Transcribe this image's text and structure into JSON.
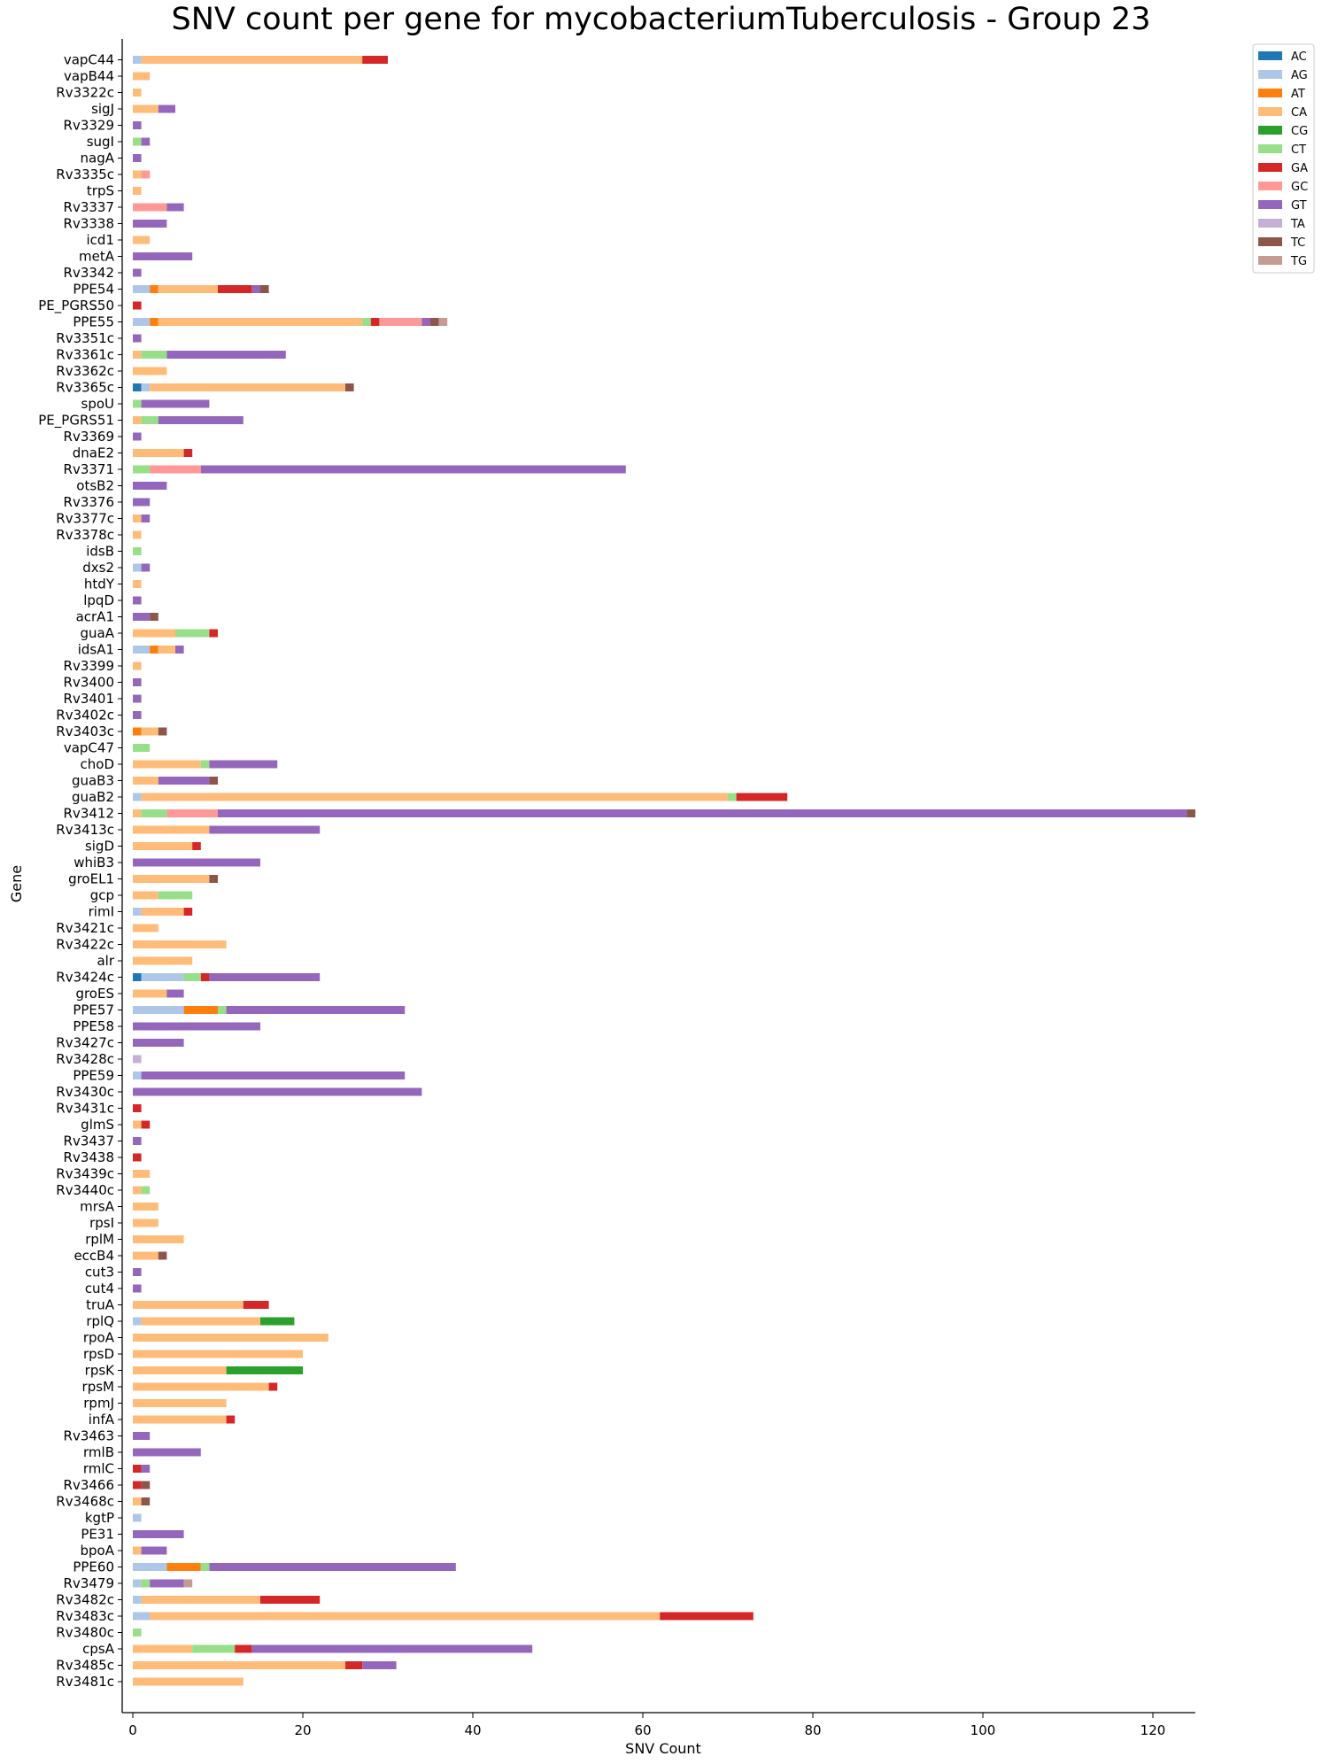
{
  "chart_data": {
    "type": "bar",
    "orientation": "horizontal",
    "stacked": true,
    "title": "SNV count per gene for mycobacteriumTuberculosis - Group 23",
    "xlabel": "SNV Count",
    "ylabel": "Gene",
    "xlim": [
      0,
      125
    ],
    "xticks": [
      0,
      20,
      40,
      60,
      80,
      100,
      120
    ],
    "grid": false,
    "legend_position": "top-right",
    "series": [
      {
        "name": "AC",
        "color": "#1f77b4"
      },
      {
        "name": "AG",
        "color": "#aec7e8"
      },
      {
        "name": "AT",
        "color": "#ff7f0e"
      },
      {
        "name": "CA",
        "color": "#ffbb78"
      },
      {
        "name": "CG",
        "color": "#2ca02c"
      },
      {
        "name": "CT",
        "color": "#98df8a"
      },
      {
        "name": "GA",
        "color": "#d62728"
      },
      {
        "name": "GC",
        "color": "#ff9896"
      },
      {
        "name": "GT",
        "color": "#9467bd"
      },
      {
        "name": "TA",
        "color": "#c5b0d5"
      },
      {
        "name": "TC",
        "color": "#8c564b"
      },
      {
        "name": "TG",
        "color": "#c49c94"
      }
    ],
    "genes": [
      {
        "name": "vapC44",
        "counts": {
          "AG": 1,
          "CA": 26,
          "GA": 3
        }
      },
      {
        "name": "vapB44",
        "counts": {
          "CA": 2
        }
      },
      {
        "name": "Rv3322c",
        "counts": {
          "CA": 1
        }
      },
      {
        "name": "sigJ",
        "counts": {
          "CA": 3,
          "GT": 2
        }
      },
      {
        "name": "Rv3329",
        "counts": {
          "GT": 1
        }
      },
      {
        "name": "sugI",
        "counts": {
          "CT": 1,
          "GT": 1
        }
      },
      {
        "name": "nagA",
        "counts": {
          "GT": 1
        }
      },
      {
        "name": "Rv3335c",
        "counts": {
          "CA": 1,
          "GC": 1
        }
      },
      {
        "name": "trpS",
        "counts": {
          "CA": 1
        }
      },
      {
        "name": "Rv3337",
        "counts": {
          "GC": 4,
          "GT": 2
        }
      },
      {
        "name": "Rv3338",
        "counts": {
          "GT": 4
        }
      },
      {
        "name": "icd1",
        "counts": {
          "CA": 2
        }
      },
      {
        "name": "metA",
        "counts": {
          "GT": 7
        }
      },
      {
        "name": "Rv3342",
        "counts": {
          "GT": 1
        }
      },
      {
        "name": "PPE54",
        "counts": {
          "AG": 2,
          "AT": 1,
          "CA": 7,
          "GA": 4,
          "GT": 1,
          "TC": 1
        }
      },
      {
        "name": "PE_PGRS50",
        "counts": {
          "GA": 1
        }
      },
      {
        "name": "PPE55",
        "counts": {
          "AG": 2,
          "AT": 1,
          "CA": 24,
          "CT": 1,
          "GA": 1,
          "GC": 5,
          "GT": 1,
          "TC": 1,
          "TG": 1
        }
      },
      {
        "name": "Rv3351c",
        "counts": {
          "GT": 1
        }
      },
      {
        "name": "Rv3361c",
        "counts": {
          "CA": 1,
          "CT": 3,
          "GT": 14
        }
      },
      {
        "name": "Rv3362c",
        "counts": {
          "CA": 4
        }
      },
      {
        "name": "Rv3365c",
        "counts": {
          "AC": 1,
          "AG": 1,
          "CA": 23,
          "TC": 1
        }
      },
      {
        "name": "spoU",
        "counts": {
          "CT": 1,
          "GT": 8
        }
      },
      {
        "name": "PE_PGRS51",
        "counts": {
          "CA": 1,
          "CT": 2,
          "GT": 10
        }
      },
      {
        "name": "Rv3369",
        "counts": {
          "GT": 1
        }
      },
      {
        "name": "dnaE2",
        "counts": {
          "CA": 6,
          "GA": 1
        }
      },
      {
        "name": "Rv3371",
        "counts": {
          "CT": 2,
          "GC": 6,
          "GT": 50
        }
      },
      {
        "name": "otsB2",
        "counts": {
          "GT": 4
        }
      },
      {
        "name": "Rv3376",
        "counts": {
          "GT": 2
        }
      },
      {
        "name": "Rv3377c",
        "counts": {
          "CA": 1,
          "GT": 1
        }
      },
      {
        "name": "Rv3378c",
        "counts": {
          "CA": 1
        }
      },
      {
        "name": "idsB",
        "counts": {
          "CT": 1
        }
      },
      {
        "name": "dxs2",
        "counts": {
          "AG": 1,
          "GT": 1
        }
      },
      {
        "name": "htdY",
        "counts": {
          "CA": 1
        }
      },
      {
        "name": "lpqD",
        "counts": {
          "GT": 1
        }
      },
      {
        "name": "acrA1",
        "counts": {
          "GT": 2,
          "TC": 1
        }
      },
      {
        "name": "guaA",
        "counts": {
          "CA": 5,
          "CT": 4,
          "GA": 1
        }
      },
      {
        "name": "idsA1",
        "counts": {
          "AG": 2,
          "AT": 1,
          "CA": 2,
          "GT": 1
        }
      },
      {
        "name": "Rv3399",
        "counts": {
          "CA": 1
        }
      },
      {
        "name": "Rv3400",
        "counts": {
          "GT": 1
        }
      },
      {
        "name": "Rv3401",
        "counts": {
          "GT": 1
        }
      },
      {
        "name": "Rv3402c",
        "counts": {
          "GT": 1
        }
      },
      {
        "name": "Rv3403c",
        "counts": {
          "AT": 1,
          "CA": 2,
          "TC": 1
        }
      },
      {
        "name": "vapC47",
        "counts": {
          "CT": 2
        }
      },
      {
        "name": "choD",
        "counts": {
          "CA": 8,
          "CT": 1,
          "GT": 8
        }
      },
      {
        "name": "guaB3",
        "counts": {
          "CA": 3,
          "GT": 6,
          "TC": 1
        }
      },
      {
        "name": "guaB2",
        "counts": {
          "AG": 1,
          "CA": 69,
          "CT": 1,
          "GA": 6
        }
      },
      {
        "name": "Rv3412",
        "counts": {
          "CA": 1,
          "CT": 3,
          "GC": 6,
          "GT": 114,
          "TC": 1
        }
      },
      {
        "name": "Rv3413c",
        "counts": {
          "CA": 9,
          "GT": 13
        }
      },
      {
        "name": "sigD",
        "counts": {
          "CA": 7,
          "GA": 1
        }
      },
      {
        "name": "whiB3",
        "counts": {
          "GT": 15
        }
      },
      {
        "name": "groEL1",
        "counts": {
          "CA": 9,
          "TC": 1
        }
      },
      {
        "name": "gcp",
        "counts": {
          "CA": 3,
          "CT": 4
        }
      },
      {
        "name": "rimI",
        "counts": {
          "AG": 1,
          "CA": 5,
          "GA": 1
        }
      },
      {
        "name": "Rv3421c",
        "counts": {
          "CA": 3
        }
      },
      {
        "name": "Rv3422c",
        "counts": {
          "CA": 11
        }
      },
      {
        "name": "alr",
        "counts": {
          "CA": 7
        }
      },
      {
        "name": "Rv3424c",
        "counts": {
          "AC": 1,
          "AG": 5,
          "CT": 2,
          "GA": 1,
          "GT": 13
        }
      },
      {
        "name": "groES",
        "counts": {
          "CA": 4,
          "GT": 2
        }
      },
      {
        "name": "PPE57",
        "counts": {
          "AG": 6,
          "AT": 4,
          "CT": 1,
          "GT": 21
        }
      },
      {
        "name": "PPE58",
        "counts": {
          "GT": 15
        }
      },
      {
        "name": "Rv3427c",
        "counts": {
          "GT": 6
        }
      },
      {
        "name": "Rv3428c",
        "counts": {
          "TA": 1
        }
      },
      {
        "name": "PPE59",
        "counts": {
          "AG": 1,
          "GT": 31
        }
      },
      {
        "name": "Rv3430c",
        "counts": {
          "GT": 34
        }
      },
      {
        "name": "Rv3431c",
        "counts": {
          "GA": 1
        }
      },
      {
        "name": "glmS",
        "counts": {
          "CA": 1,
          "GA": 1
        }
      },
      {
        "name": "Rv3437",
        "counts": {
          "GT": 1
        }
      },
      {
        "name": "Rv3438",
        "counts": {
          "GA": 1
        }
      },
      {
        "name": "Rv3439c",
        "counts": {
          "CA": 2
        }
      },
      {
        "name": "Rv3440c",
        "counts": {
          "CA": 1,
          "CT": 1
        }
      },
      {
        "name": "mrsA",
        "counts": {
          "CA": 3
        }
      },
      {
        "name": "rpsI",
        "counts": {
          "CA": 3
        }
      },
      {
        "name": "rplM",
        "counts": {
          "CA": 6
        }
      },
      {
        "name": "eccB4",
        "counts": {
          "CA": 3,
          "TC": 1
        }
      },
      {
        "name": "cut3",
        "counts": {
          "GT": 1
        }
      },
      {
        "name": "cut4",
        "counts": {
          "GT": 1
        }
      },
      {
        "name": "truA",
        "counts": {
          "CA": 13,
          "GA": 3
        }
      },
      {
        "name": "rplQ",
        "counts": {
          "AG": 1,
          "CA": 14,
          "CG": 4
        }
      },
      {
        "name": "rpoA",
        "counts": {
          "CA": 23
        }
      },
      {
        "name": "rpsD",
        "counts": {
          "CA": 20
        }
      },
      {
        "name": "rpsK",
        "counts": {
          "CA": 11,
          "CG": 9
        }
      },
      {
        "name": "rpsM",
        "counts": {
          "CA": 16,
          "GA": 1
        }
      },
      {
        "name": "rpmJ",
        "counts": {
          "CA": 11
        }
      },
      {
        "name": "infA",
        "counts": {
          "CA": 11,
          "GA": 1
        }
      },
      {
        "name": "Rv3463",
        "counts": {
          "GT": 2
        }
      },
      {
        "name": "rmlB",
        "counts": {
          "GT": 8
        }
      },
      {
        "name": "rmlC",
        "counts": {
          "GA": 1,
          "GT": 1
        }
      },
      {
        "name": "Rv3466",
        "counts": {
          "GA": 1,
          "TC": 1
        }
      },
      {
        "name": "Rv3468c",
        "counts": {
          "CA": 1,
          "TC": 1
        }
      },
      {
        "name": "kgtP",
        "counts": {
          "AG": 1
        }
      },
      {
        "name": "PE31",
        "counts": {
          "GT": 6
        }
      },
      {
        "name": "bpoA",
        "counts": {
          "CA": 1,
          "GT": 3
        }
      },
      {
        "name": "PPE60",
        "counts": {
          "AG": 4,
          "AT": 4,
          "CT": 1,
          "GT": 29
        }
      },
      {
        "name": "Rv3479",
        "counts": {
          "AG": 1,
          "CT": 1,
          "GT": 4,
          "TG": 1
        }
      },
      {
        "name": "Rv3482c",
        "counts": {
          "AG": 1,
          "CA": 14,
          "GA": 7
        }
      },
      {
        "name": "Rv3483c",
        "counts": {
          "AG": 2,
          "CA": 60,
          "GA": 11
        }
      },
      {
        "name": "Rv3480c",
        "counts": {
          "CT": 1
        }
      },
      {
        "name": "cpsA",
        "counts": {
          "CA": 7,
          "CT": 5,
          "GA": 2,
          "GT": 33
        }
      },
      {
        "name": "Rv3485c",
        "counts": {
          "CA": 25,
          "GA": 2,
          "GT": 4
        }
      },
      {
        "name": "Rv3481c",
        "counts": {
          "CA": 13
        }
      }
    ]
  }
}
